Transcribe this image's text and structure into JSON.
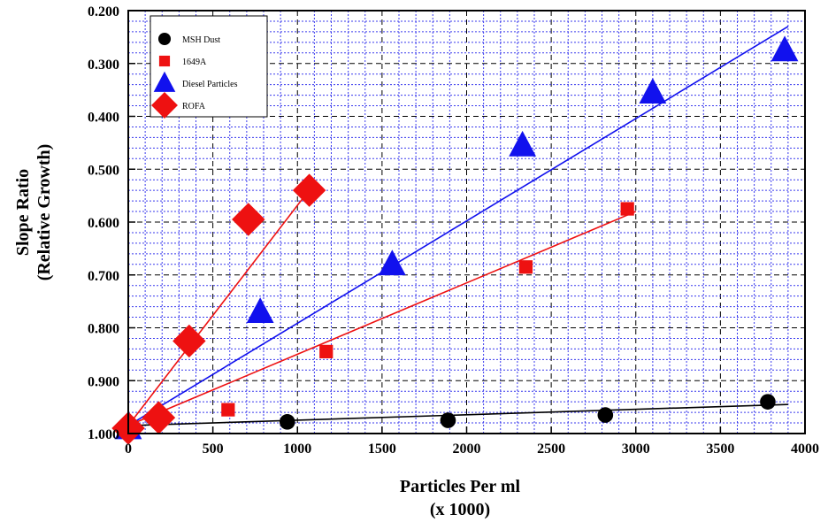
{
  "chart_data": {
    "type": "scatter",
    "title": "",
    "xlabel": "Particles Per ml",
    "xlabel2": "(x 1000)",
    "ylabel": "Slope Ratio",
    "ylabel2": "(Relative Growth)",
    "xlim": [
      0,
      4000
    ],
    "ylim": [
      0.2,
      1.0
    ],
    "y_inverted": true,
    "x_ticks": [
      "0",
      "500",
      "1000",
      "1500",
      "2000",
      "2500",
      "3000",
      "3500",
      "4000"
    ],
    "x_tick_values": [
      0,
      500,
      1000,
      1500,
      2000,
      2500,
      3000,
      3500,
      4000
    ],
    "y_ticks": [
      "0.200",
      "0.300",
      "0.400",
      "0.500",
      "0.600",
      "0.700",
      "0.800",
      "0.900",
      "1.000"
    ],
    "y_tick_values": [
      0.2,
      0.3,
      0.4,
      0.5,
      0.6,
      0.7,
      0.8,
      0.9,
      1.0
    ],
    "grid": true,
    "legend_position": "top-left",
    "series": [
      {
        "name": "MSH Dust",
        "marker": "circle",
        "color": "#000000",
        "points": [
          [
            0,
            0.99
          ],
          [
            940,
            0.978
          ],
          [
            1890,
            0.975
          ],
          [
            2820,
            0.965
          ],
          [
            3780,
            0.94
          ]
        ],
        "fit": [
          [
            0,
            0.985
          ],
          [
            3900,
            0.945
          ]
        ]
      },
      {
        "name": "1649A",
        "marker": "square",
        "color": "#ee1111",
        "points": [
          [
            0,
            0.99
          ],
          [
            590,
            0.955
          ],
          [
            1170,
            0.845
          ],
          [
            2350,
            0.685
          ],
          [
            2950,
            0.575
          ]
        ],
        "fit": [
          [
            0,
            0.985
          ],
          [
            3000,
            0.58
          ]
        ]
      },
      {
        "name": "Diesel Particles",
        "marker": "triangle",
        "color": "#1111ee",
        "points": [
          [
            0,
            0.99
          ],
          [
            780,
            0.77
          ],
          [
            1560,
            0.68
          ],
          [
            2330,
            0.455
          ],
          [
            3100,
            0.355
          ],
          [
            3880,
            0.275
          ]
        ],
        "fit": [
          [
            0,
            0.985
          ],
          [
            3900,
            0.23
          ]
        ]
      },
      {
        "name": "ROFA",
        "marker": "diamond",
        "color": "#ee1111",
        "points": [
          [
            0,
            0.99
          ],
          [
            180,
            0.97
          ],
          [
            360,
            0.825
          ],
          [
            710,
            0.595
          ],
          [
            1070,
            0.54
          ]
        ],
        "fit": [
          [
            0,
            0.985
          ],
          [
            1080,
            0.535
          ]
        ]
      }
    ]
  }
}
